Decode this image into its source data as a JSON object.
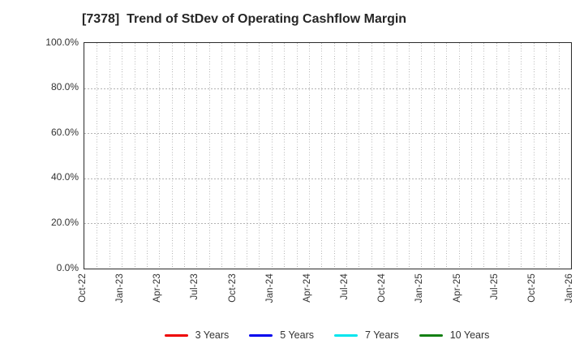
{
  "chart_data": {
    "type": "line",
    "title": "[7378]  Trend of StDev of Operating Cashflow Margin",
    "x_tick_labels": [
      "Oct-22",
      "Jan-23",
      "Apr-23",
      "Jul-23",
      "Oct-23",
      "Jan-24",
      "Apr-24",
      "Jul-24",
      "Oct-24",
      "Jan-25",
      "Apr-25",
      "Jul-25",
      "Oct-25",
      "Jan-26"
    ],
    "x_tick_every_months": 3,
    "x_months_span": 39,
    "y_tick_labels": [
      "0.0%",
      "20.0%",
      "40.0%",
      "60.0%",
      "80.0%",
      "100.0%"
    ],
    "ylim": [
      0,
      100
    ],
    "grid": "dotted",
    "grid_color": "#b3b3b3",
    "frame_color": "#2b2b2b",
    "text_color": "#333333",
    "legend_position": "bottom",
    "series": [
      {
        "name": "3 Years",
        "color": "#ee0000",
        "values": []
      },
      {
        "name": "5 Years",
        "color": "#0000ee",
        "values": []
      },
      {
        "name": "7 Years",
        "color": "#00e5ee",
        "values": []
      },
      {
        "name": "10 Years",
        "color": "#148014",
        "values": []
      }
    ]
  }
}
